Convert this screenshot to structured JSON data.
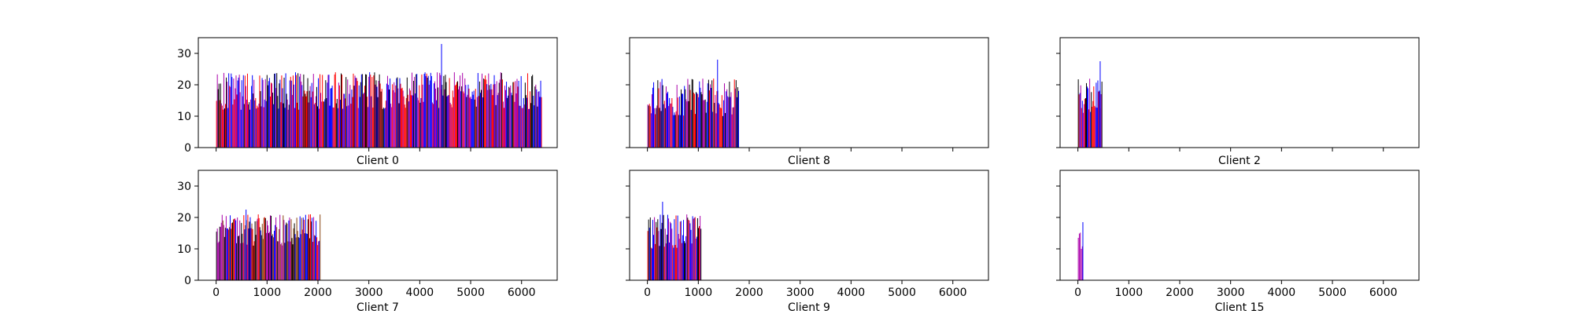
{
  "chart_data": [
    {
      "type": "bar",
      "title": "Client 0",
      "xlim": [
        -350,
        6700
      ],
      "ylim": [
        0,
        35
      ],
      "xticks": [
        0,
        1000,
        2000,
        3000,
        4000,
        5000,
        6000
      ],
      "yticks": [
        0,
        10,
        20,
        30
      ],
      "show_xticklabels": false,
      "show_yticklabels": true,
      "grid": false,
      "legend": "none",
      "x_extent": [
        0,
        6400
      ],
      "peak": {
        "x": 4420,
        "value": 33
      },
      "value_range": [
        12,
        24
      ],
      "colors": [
        "blue",
        "black",
        "red",
        "purple"
      ],
      "approx_bar_count": 400
    },
    {
      "type": "bar",
      "title": "Client 8",
      "xlim": [
        -350,
        6700
      ],
      "ylim": [
        0,
        35
      ],
      "xticks": [
        0,
        1000,
        2000,
        3000,
        4000,
        5000,
        6000
      ],
      "yticks": [
        0,
        10,
        20,
        30
      ],
      "show_xticklabels": false,
      "show_yticklabels": false,
      "grid": false,
      "legend": "none",
      "x_extent": [
        0,
        1800
      ],
      "peak": {
        "x": 1370,
        "value": 28
      },
      "value_range": [
        10,
        22
      ],
      "colors": [
        "blue",
        "black",
        "red",
        "purple"
      ],
      "approx_bar_count": 110
    },
    {
      "type": "bar",
      "title": "Client 2",
      "xlim": [
        -350,
        6700
      ],
      "ylim": [
        0,
        35
      ],
      "xticks": [
        0,
        1000,
        2000,
        3000,
        4000,
        5000,
        6000
      ],
      "yticks": [
        0,
        10,
        20,
        30
      ],
      "show_xticklabels": false,
      "show_yticklabels": false,
      "grid": false,
      "legend": "none",
      "x_extent": [
        0,
        480
      ],
      "peak": {
        "x": 430,
        "value": 27.5
      },
      "value_range": [
        11,
        22
      ],
      "colors": [
        "blue",
        "black",
        "red",
        "purple"
      ],
      "approx_bar_count": 30
    },
    {
      "type": "bar",
      "title": "Client 7",
      "xlim": [
        -350,
        6700
      ],
      "ylim": [
        0,
        35
      ],
      "xticks": [
        0,
        1000,
        2000,
        3000,
        4000,
        5000,
        6000
      ],
      "yticks": [
        0,
        10,
        20,
        30
      ],
      "show_xticklabels": true,
      "show_yticklabels": true,
      "grid": false,
      "legend": "none",
      "x_extent": [
        0,
        2050
      ],
      "peak": {
        "x": 580,
        "value": 22.5
      },
      "value_range": [
        11,
        21
      ],
      "colors": [
        "red",
        "black",
        "blue",
        "purple",
        "brown"
      ],
      "approx_bar_count": 130
    },
    {
      "type": "bar",
      "title": "Client 9",
      "xlim": [
        -350,
        6700
      ],
      "ylim": [
        0,
        35
      ],
      "xticks": [
        0,
        1000,
        2000,
        3000,
        4000,
        5000,
        6000
      ],
      "yticks": [
        0,
        10,
        20,
        30
      ],
      "show_xticklabels": true,
      "show_yticklabels": false,
      "grid": false,
      "legend": "none",
      "x_extent": [
        0,
        1060
      ],
      "peak": {
        "x": 290,
        "value": 25
      },
      "value_range": [
        10,
        21
      ],
      "colors": [
        "blue",
        "black",
        "red",
        "purple"
      ],
      "approx_bar_count": 65
    },
    {
      "type": "bar",
      "title": "Client 15",
      "xlim": [
        -350,
        6700
      ],
      "ylim": [
        0,
        35
      ],
      "xticks": [
        0,
        1000,
        2000,
        3000,
        4000,
        5000,
        6000
      ],
      "yticks": [
        0,
        10,
        20,
        30
      ],
      "show_xticklabels": true,
      "show_yticklabels": false,
      "grid": false,
      "legend": "none",
      "x_extent": [
        0,
        100
      ],
      "peak": {
        "x": 90,
        "value": 18.5
      },
      "value_range": [
        10,
        16
      ],
      "colors": [
        "blue",
        "purple"
      ],
      "approx_bar_count": 5
    }
  ]
}
